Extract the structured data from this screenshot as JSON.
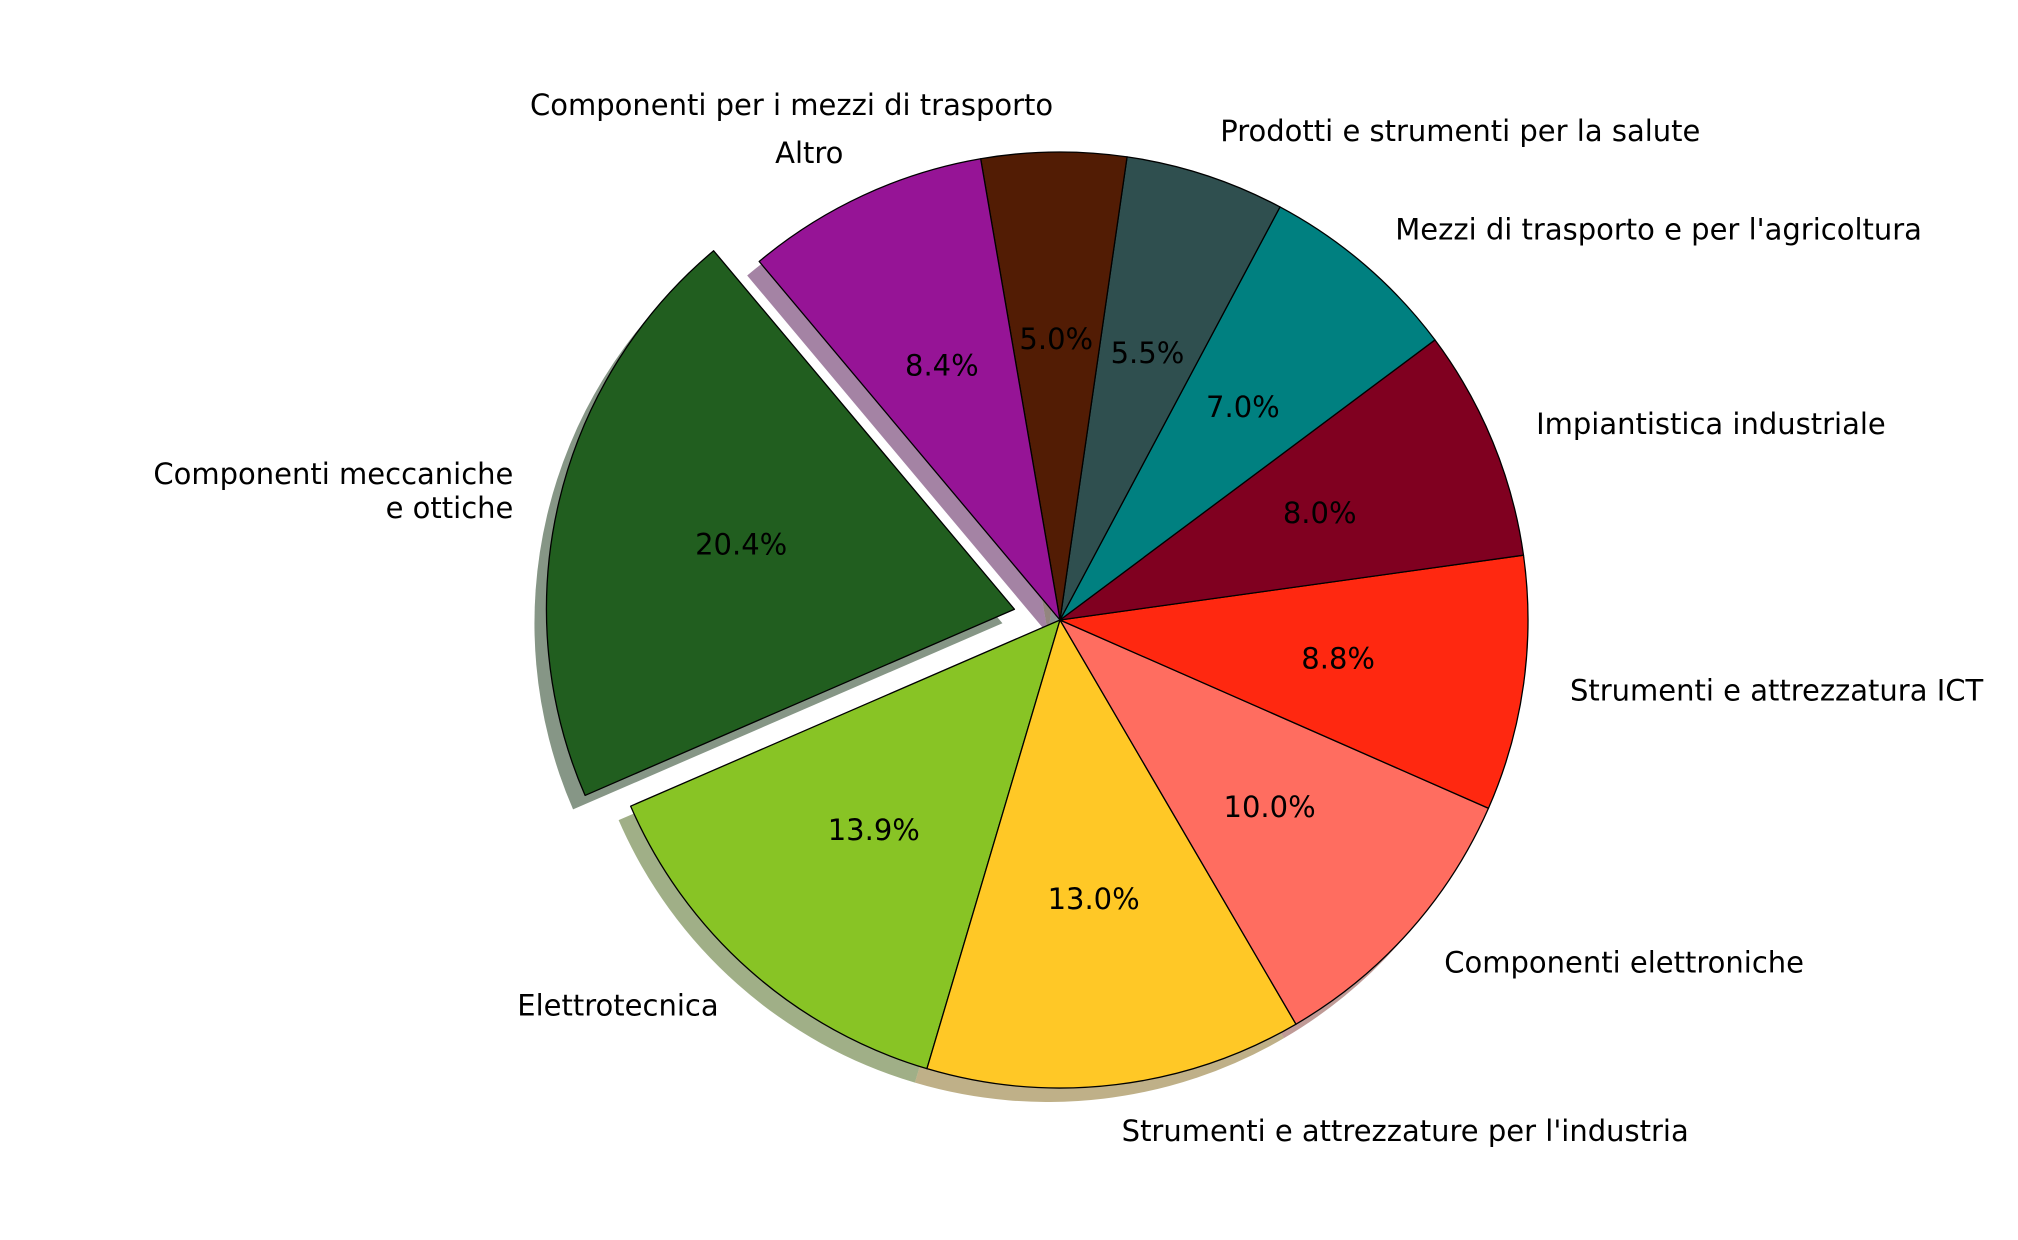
{
  "chart_data": {
    "type": "pie",
    "title": "",
    "startangle_deg": 130,
    "counterclockwise": true,
    "shadow": true,
    "percent_format": "1 decimal",
    "slices": [
      {
        "label": "Componenti meccaniche\ne ottiche",
        "value": 20.4,
        "pct_text": "20.4%",
        "color": "#215e1f",
        "explode": 0.1,
        "label_align": "right"
      },
      {
        "label": "Elettrotecnica",
        "value": 13.9,
        "pct_text": "13.9%",
        "color": "#88c425",
        "explode": 0,
        "label_align": "right"
      },
      {
        "label": "Strumenti e attrezzature per l'industria",
        "value": 13.0,
        "pct_text": "13.0%",
        "color": "#ffc826",
        "explode": 0,
        "label_align": "left"
      },
      {
        "label": "Componenti elettroniche",
        "value": 10.0,
        "pct_text": "10.0%",
        "color": "#ff6d60",
        "explode": 0,
        "label_align": "left"
      },
      {
        "label": "Strumenti e attrezzatura ICT",
        "value": 8.8,
        "pct_text": "8.8%",
        "color": "#ff2810",
        "explode": 0,
        "label_align": "left"
      },
      {
        "label": "Impiantistica industriale",
        "value": 8.0,
        "pct_text": "8.0%",
        "color": "#800020",
        "explode": 0,
        "label_align": "left"
      },
      {
        "label": "Mezzi di trasporto e per l'agricoltura",
        "value": 7.0,
        "pct_text": "7.0%",
        "color": "#008080",
        "explode": 0,
        "label_align": "left"
      },
      {
        "label": "Prodotti e strumenti per la salute",
        "value": 5.5,
        "pct_text": "5.5%",
        "color": "#2f4f4f",
        "explode": 0,
        "label_align": "left"
      },
      {
        "label": "Componenti per i mezzi di trasporto",
        "value": 5.0,
        "pct_text": "5.0%",
        "color": "#521c04",
        "explode": 0,
        "label_align": "right"
      },
      {
        "label": "Altro",
        "value": 8.4,
        "pct_text": "8.4%",
        "color": "#961496",
        "explode": 0,
        "label_align": "right"
      }
    ]
  }
}
